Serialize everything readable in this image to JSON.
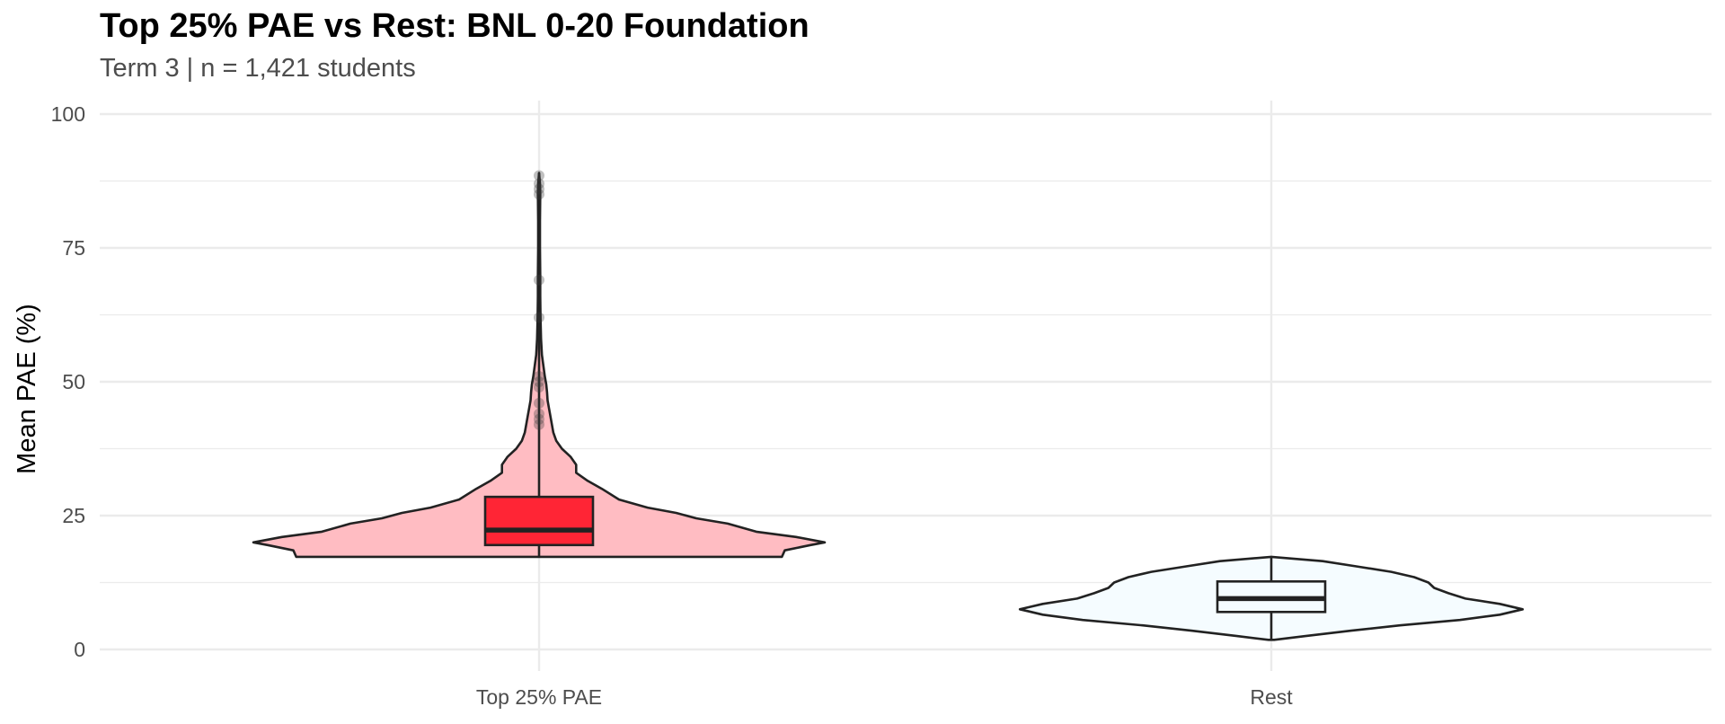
{
  "chart_data": {
    "type": "violin",
    "title": "Top 25% PAE vs Rest: BNL 0-20 Foundation",
    "subtitle": "Term 3 | n = 1,421 students",
    "xlabel": "",
    "ylabel": "Mean PAE (%)",
    "ylim": [
      0,
      100
    ],
    "yticks": [
      0,
      25,
      50,
      75,
      100
    ],
    "grid": true,
    "legend": "none",
    "categories": [
      "Top 25% PAE",
      "Rest"
    ],
    "groups": [
      {
        "name": "Top 25% PAE",
        "violin_fill": "#ffbcc2",
        "box_fill": "#ff2535",
        "box": {
          "q1": 19.5,
          "median": 22.3,
          "q3": 28.5,
          "whisker_low": 17.3,
          "whisker_high": 89
        },
        "outliers": [
          42,
          43,
          44,
          46,
          49,
          50,
          51,
          62,
          69,
          85,
          86,
          87,
          88.5
        ],
        "density": [
          [
            17.3,
            0.85
          ],
          [
            18.5,
            0.86
          ],
          [
            19.5,
            0.95
          ],
          [
            20.0,
            1.0
          ],
          [
            21.0,
            0.9
          ],
          [
            22.0,
            0.76
          ],
          [
            23.5,
            0.66
          ],
          [
            24.5,
            0.55
          ],
          [
            25.5,
            0.48
          ],
          [
            26.5,
            0.38
          ],
          [
            28.0,
            0.28
          ],
          [
            30.0,
            0.22
          ],
          [
            31.5,
            0.17
          ],
          [
            33.0,
            0.13
          ],
          [
            34.5,
            0.13
          ],
          [
            36.0,
            0.11
          ],
          [
            37.5,
            0.08
          ],
          [
            39.0,
            0.06
          ],
          [
            40.5,
            0.05
          ],
          [
            42.0,
            0.045
          ],
          [
            43.5,
            0.04
          ],
          [
            45.0,
            0.035
          ],
          [
            46.5,
            0.03
          ],
          [
            48.0,
            0.028
          ],
          [
            49.5,
            0.025
          ],
          [
            51.0,
            0.02
          ],
          [
            53.0,
            0.015
          ],
          [
            55.0,
            0.01
          ],
          [
            58.0,
            0.007
          ],
          [
            62.0,
            0.005
          ],
          [
            66.0,
            0.004
          ],
          [
            70.0,
            0.004
          ],
          [
            75.0,
            0.003
          ],
          [
            80.0,
            0.003
          ],
          [
            85.0,
            0.004
          ],
          [
            87.0,
            0.003
          ],
          [
            89.0,
            0.0
          ]
        ]
      },
      {
        "name": "Rest",
        "violin_fill": "#f5fcff",
        "box_fill": "#f5fcff",
        "box": {
          "q1": 7.0,
          "median": 9.5,
          "q3": 12.7,
          "whisker_low": 1.8,
          "whisker_high": 17.3
        },
        "outliers": [],
        "density": [
          [
            1.8,
            0.01
          ],
          [
            2.5,
            0.12
          ],
          [
            3.5,
            0.28
          ],
          [
            4.5,
            0.45
          ],
          [
            5.5,
            0.66
          ],
          [
            6.5,
            0.8
          ],
          [
            7.5,
            0.88
          ],
          [
            8.5,
            0.8
          ],
          [
            9.5,
            0.68
          ],
          [
            10.5,
            0.62
          ],
          [
            11.5,
            0.57
          ],
          [
            12.5,
            0.55
          ],
          [
            13.5,
            0.5
          ],
          [
            14.5,
            0.42
          ],
          [
            15.5,
            0.3
          ],
          [
            16.5,
            0.18
          ],
          [
            17.3,
            0.0
          ]
        ]
      }
    ]
  }
}
